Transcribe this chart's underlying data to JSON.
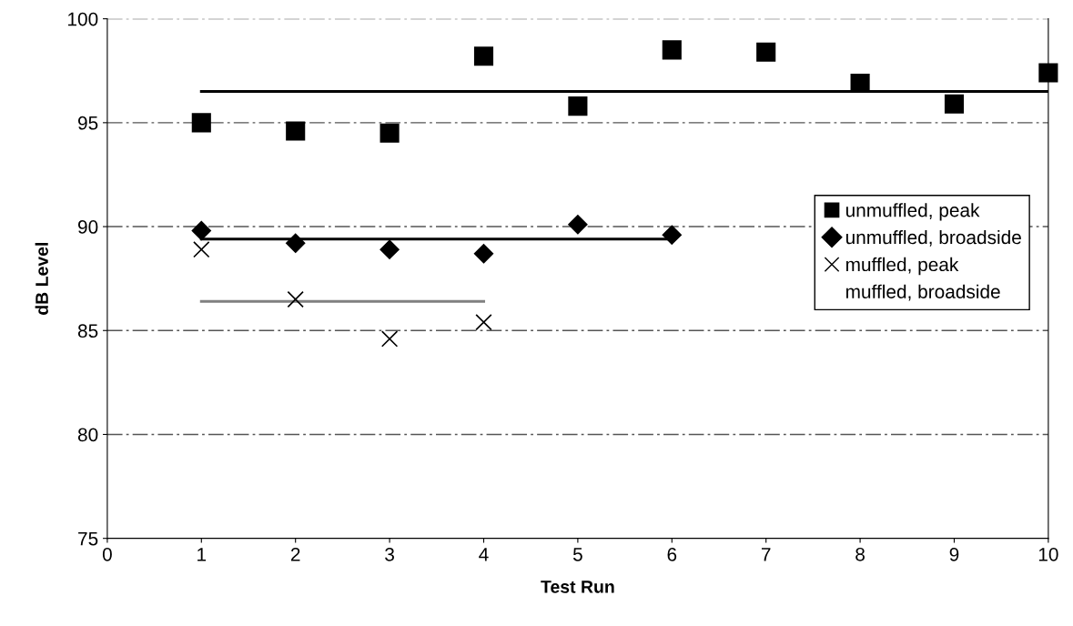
{
  "chart_data": {
    "type": "scatter",
    "xlabel": "Test Run",
    "ylabel": "dB Level",
    "x": [
      1,
      2,
      3,
      4,
      5,
      6,
      7,
      8,
      9,
      10
    ],
    "series": [
      {
        "name": "unmuffled, peak",
        "color": "#000000",
        "marker": "square",
        "values": [
          95.0,
          94.6,
          94.5,
          98.2,
          95.8,
          98.5,
          98.4,
          96.9,
          95.9,
          97.4
        ]
      },
      {
        "name": "unmuffled, broadside",
        "color": "#000000",
        "marker": "diamond",
        "x": [
          1,
          2,
          3,
          4,
          5,
          6
        ],
        "values": [
          89.8,
          89.2,
          88.9,
          88.7,
          90.1,
          89.6
        ]
      },
      {
        "name": "muffled, peak",
        "color": "#000000",
        "marker": "cross",
        "x": [
          1,
          2,
          3,
          4
        ],
        "values": [
          88.9,
          86.5,
          84.6,
          85.4
        ]
      },
      {
        "name": "muffled, broadside",
        "color": "#000000",
        "marker": "none",
        "values": [
          null,
          null,
          null,
          null,
          null,
          null,
          null,
          null,
          null,
          null
        ]
      },
      {
        "type": "line",
        "color": "#000000",
        "x": [
          1,
          10
        ],
        "values": [
          96.5,
          96.5
        ]
      },
      {
        "type": "line",
        "color": "#000000",
        "x": [
          1,
          6
        ],
        "values": [
          89.4,
          89.4
        ]
      },
      {
        "type": "line",
        "color": "#808080",
        "x": [
          1,
          4
        ],
        "values": [
          86.4,
          86.4
        ]
      }
    ],
    "xlim": [
      0,
      10
    ],
    "xticks": [
      0,
      1,
      2,
      3,
      4,
      5,
      6,
      7,
      8,
      9,
      10
    ],
    "ylim": [
      75,
      100
    ],
    "yticks": [
      75,
      80,
      85,
      90,
      95,
      100
    ],
    "grid": "y",
    "legend": "right"
  }
}
